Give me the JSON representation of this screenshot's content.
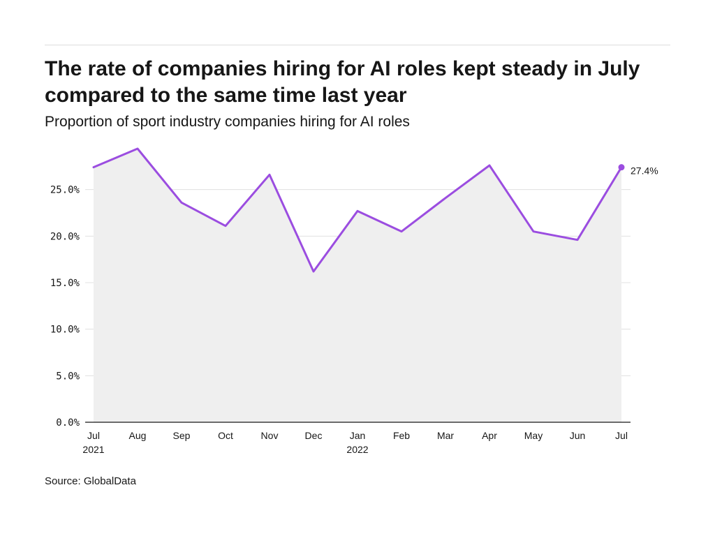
{
  "header": {
    "title": "The rate of companies hiring for AI roles kept steady in July compared to the same time last year",
    "subtitle": "Proportion of sport industry companies hiring for AI roles"
  },
  "footer": {
    "source": "Source: GlobalData"
  },
  "colors": {
    "line": "#9b4de0",
    "area": "#efefef",
    "grid": "#e0e0e0",
    "axis": "#161616"
  },
  "chart_data": {
    "type": "area",
    "title": "The rate of companies hiring for AI roles kept steady in July compared to the same time last year",
    "subtitle": "Proportion of sport industry companies hiring for AI roles",
    "xlabel": "",
    "ylabel": "",
    "categories": [
      [
        "Jul",
        "2021"
      ],
      [
        "Aug"
      ],
      [
        "Sep"
      ],
      [
        "Oct"
      ],
      [
        "Nov"
      ],
      [
        "Dec"
      ],
      [
        "Jan",
        "2022"
      ],
      [
        "Feb"
      ],
      [
        "Mar"
      ],
      [
        "Apr"
      ],
      [
        "May"
      ],
      [
        "Jun"
      ],
      [
        "Jul"
      ]
    ],
    "values": [
      27.4,
      29.4,
      23.6,
      21.1,
      26.6,
      16.2,
      22.7,
      20.5,
      24.1,
      27.6,
      20.5,
      19.6,
      27.4
    ],
    "ylim": [
      0,
      30
    ],
    "yticks": [
      0,
      5,
      10,
      15,
      20,
      25
    ],
    "ytick_labels": [
      "0.0%",
      "5.0%",
      "10.0%",
      "15.0%",
      "20.0%",
      "25.0%"
    ],
    "grid": true,
    "annotation": {
      "index": 12,
      "text": "27.4%"
    }
  }
}
